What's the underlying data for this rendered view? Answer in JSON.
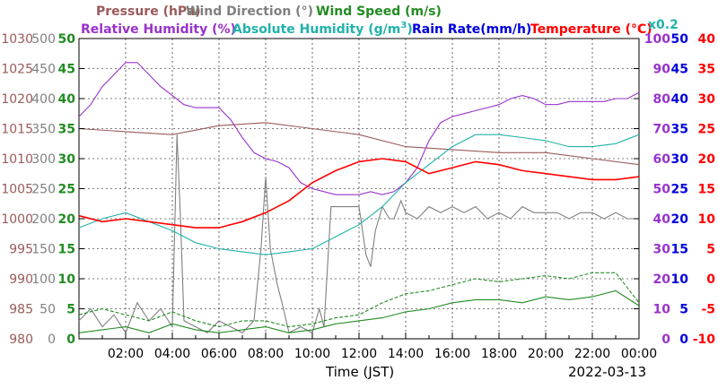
{
  "chart_data": {
    "type": "line",
    "date": "2022-03-13",
    "xlabel": "Time (JST)",
    "x_ticks": [
      "02:00",
      "04:00",
      "06:00",
      "08:00",
      "10:00",
      "12:00",
      "14:00",
      "16:00",
      "18:00",
      "20:00",
      "22:00",
      "00:00"
    ],
    "x_range_hours": [
      0,
      24
    ],
    "grid": true,
    "legend_placement": "top",
    "axes": {
      "pressure": {
        "label": "Pressure (hPa)",
        "color": "#9a5a5a",
        "range": [
          980,
          1030
        ],
        "ticks": [
          "1030",
          "1025",
          "1020",
          "1015",
          "1010",
          "1005",
          "1000",
          "995",
          "990",
          "985",
          "980"
        ]
      },
      "wind_direction": {
        "label": "Wind Direction (°)",
        "color": "#808080",
        "range": [
          0,
          500
        ],
        "ticks": [
          "500",
          "450",
          "400",
          "350",
          "300",
          "250",
          "200",
          "150",
          "100",
          "50",
          "0"
        ]
      },
      "wind_speed": {
        "label": "Wind Speed (m/s)",
        "color": "#228b22",
        "range": [
          0,
          50
        ],
        "ticks": [
          "50",
          "45",
          "40",
          "35",
          "30",
          "25",
          "20",
          "15",
          "10",
          "5",
          "0"
        ]
      },
      "humidity": {
        "label": "Relative Humidity (%)",
        "color": "#9932cc",
        "range": [
          0,
          100
        ],
        "ticks": [
          "100",
          "90",
          "80",
          "70",
          "60",
          "50",
          "40",
          "30",
          "20",
          "10",
          "0"
        ]
      },
      "rain": {
        "label": "Rain Rate(mm/h)",
        "color": "#0000dd",
        "range": [
          0,
          50
        ],
        "ticks": [
          "50",
          "45",
          "40",
          "35",
          "30",
          "25",
          "20",
          "15",
          "10",
          "5",
          "0"
        ]
      },
      "temperature": {
        "label": "Temperature (°C)",
        "color": "#ff0000",
        "range": [
          -10,
          40
        ],
        "ticks": [
          "40",
          "35",
          "30",
          "25",
          "20",
          "15",
          "10",
          "5",
          "0",
          "-5",
          "-10"
        ]
      }
    },
    "abs_humidity_label": "Absolute Humidity (g/m",
    "abs_humidity_sup": "3",
    "abs_humidity_tail": ")",
    "abs_humidity_color": "#20b2aa",
    "abs_humidity_scale_note": "x0.2",
    "series": [
      {
        "name": "Pressure (hPa)",
        "axis": "pressure",
        "color": "#9a5a5a",
        "style": "solid",
        "x": [
          0,
          2,
          4,
          6,
          8,
          10,
          12,
          14,
          16,
          18,
          20,
          22,
          24
        ],
        "y": [
          1015,
          1014.5,
          1014,
          1015.5,
          1016,
          1015,
          1014,
          1012,
          1011.5,
          1011,
          1011,
          1010,
          1009
        ]
      },
      {
        "name": "Wind Direction (°)",
        "axis": "wind_direction",
        "color": "#808080",
        "style": "solid",
        "x": [
          0,
          0.5,
          1,
          1.5,
          2,
          2.5,
          3,
          3.5,
          4,
          4.2,
          4.35,
          4.5,
          5,
          5.5,
          6,
          6.5,
          7,
          7.5,
          7.8,
          8.0,
          8.2,
          8.5,
          8.7,
          9,
          9.5,
          10,
          10.3,
          10.5,
          10.8,
          11,
          11.5,
          12,
          12.3,
          12.5,
          12.7,
          13,
          13.3,
          13.5,
          13.8,
          14,
          14.5,
          15,
          15.5,
          16,
          16.5,
          17,
          17.5,
          18,
          18.5,
          19,
          19.5,
          20,
          20.5,
          21,
          21.5,
          22,
          22.5,
          23,
          23.5,
          24
        ],
        "y": [
          30,
          50,
          20,
          40,
          10,
          60,
          30,
          50,
          20,
          340,
          200,
          30,
          20,
          10,
          30,
          20,
          10,
          30,
          150,
          270,
          150,
          90,
          60,
          10,
          20,
          10,
          50,
          20,
          220,
          220,
          220,
          220,
          140,
          120,
          180,
          220,
          200,
          200,
          230,
          210,
          200,
          220,
          210,
          220,
          210,
          220,
          200,
          210,
          200,
          220,
          210,
          210,
          210,
          200,
          210,
          210,
          200,
          210,
          200,
          200
        ]
      },
      {
        "name": "Wind Speed (m/s)",
        "axis": "wind_speed",
        "color": "#228b22",
        "style": "solid",
        "x": [
          0,
          1,
          2,
          3,
          4,
          5,
          6,
          7,
          8,
          9,
          10,
          11,
          12,
          13,
          14,
          15,
          16,
          17,
          18,
          19,
          20,
          21,
          22,
          23,
          24
        ],
        "y": [
          1,
          1.5,
          2,
          1,
          2.5,
          1.5,
          1,
          1.5,
          2,
          1,
          1.5,
          2.5,
          3,
          3.5,
          4.5,
          5,
          6,
          6.5,
          6.5,
          6,
          7,
          6.5,
          7,
          8,
          5.5
        ]
      },
      {
        "name": "Wind Speed gust (m/s)",
        "axis": "wind_speed",
        "color": "#228b22",
        "style": "dashed",
        "x": [
          0,
          1,
          2,
          3,
          4,
          5,
          6,
          7,
          8,
          9,
          10,
          11,
          12,
          13,
          14,
          15,
          16,
          17,
          18,
          19,
          20,
          21,
          22,
          23,
          24
        ],
        "y": [
          4,
          5,
          4,
          3,
          4.5,
          3,
          2,
          3,
          3,
          2,
          2.5,
          3.5,
          4,
          6,
          7.5,
          8,
          9,
          10,
          9.5,
          10,
          10.5,
          10,
          11,
          11,
          6
        ]
      },
      {
        "name": "Relative Humidity (%)",
        "axis": "humidity",
        "color": "#9932cc",
        "style": "solid",
        "x": [
          0,
          0.5,
          1,
          1.5,
          2,
          2.5,
          3,
          3.5,
          4,
          4.5,
          5,
          5.5,
          6,
          6.5,
          7,
          7.5,
          8,
          8.5,
          9,
          9.5,
          10,
          10.5,
          11,
          11.5,
          12,
          12.5,
          13,
          13.5,
          14,
          14.5,
          15,
          15.5,
          16,
          16.5,
          17,
          17.5,
          18,
          18.5,
          19,
          19.5,
          20,
          20.5,
          21,
          21.5,
          22,
          22.5,
          23,
          23.5,
          24
        ],
        "y": [
          74,
          78,
          84,
          88,
          92,
          92,
          88,
          84,
          81,
          78,
          77,
          77,
          77,
          73,
          67,
          62,
          60,
          59,
          57,
          52,
          50,
          49,
          48,
          48,
          48,
          49,
          48,
          49,
          52,
          57,
          66,
          72,
          74,
          75,
          76,
          77,
          78,
          80,
          81,
          80,
          78,
          78,
          79,
          79,
          79,
          79,
          80,
          80,
          82
        ]
      },
      {
        "name": "Absolute Humidity (g/m3)",
        "axis": "temperature",
        "color": "#20b2aa",
        "style": "solid",
        "x": [
          0,
          1,
          2,
          3,
          4,
          5,
          6,
          7,
          8,
          9,
          10,
          11,
          12,
          13,
          14,
          15,
          16,
          17,
          18,
          19,
          20,
          21,
          22,
          23,
          24
        ],
        "y": [
          8.5,
          10,
          11,
          9.5,
          8,
          6,
          5,
          4.5,
          4,
          4.5,
          5,
          7,
          9,
          12,
          16,
          19,
          22,
          24,
          24,
          23.5,
          23,
          22,
          22,
          22.5,
          24
        ]
      },
      {
        "name": "Temperature (°C)",
        "axis": "temperature",
        "color": "#ff0000",
        "style": "solid",
        "x": [
          0,
          1,
          2,
          3,
          4,
          5,
          6,
          7,
          8,
          9,
          10,
          11,
          12,
          13,
          14,
          15,
          16,
          17,
          18,
          19,
          20,
          21,
          22,
          23,
          24
        ],
        "y": [
          10.5,
          9.5,
          10,
          9.5,
          9,
          8.5,
          8.5,
          9.5,
          11,
          13,
          16,
          18,
          19.5,
          20,
          19.5,
          17.5,
          18.5,
          19.5,
          19,
          18,
          17.5,
          17,
          16.5,
          16.5,
          17
        ]
      }
    ]
  }
}
